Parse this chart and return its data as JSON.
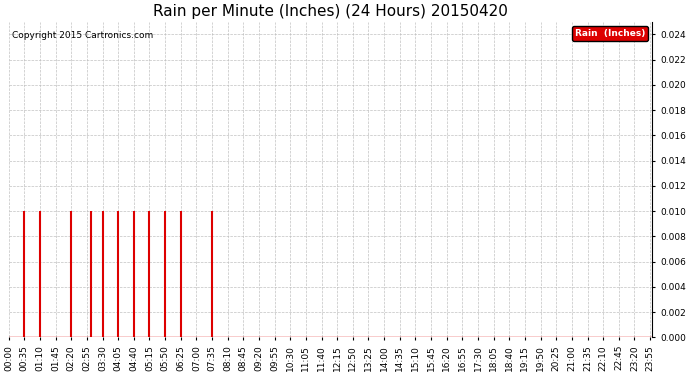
{
  "title": "Rain per Minute (Inches) (24 Hours) 20150420",
  "copyright": "Copyright 2015 Cartronics.com",
  "legend_label": "Rain  (Inches)",
  "legend_bg": "#dd0000",
  "legend_text_color": "#ffffff",
  "bar_color": "#dd0000",
  "baseline_color": "#dd0000",
  "background_color": "#ffffff",
  "ylim": [
    0.0,
    0.025
  ],
  "yticks": [
    0.0,
    0.002,
    0.004,
    0.006,
    0.008,
    0.01,
    0.012,
    0.014,
    0.016,
    0.018,
    0.02,
    0.022,
    0.024
  ],
  "grid_color": "#bbbbbb",
  "title_fontsize": 11,
  "tick_fontsize": 6.5,
  "rain_minutes": [
    35,
    70,
    140,
    185,
    210,
    245,
    280,
    315,
    350,
    385,
    455
  ],
  "rain_values": [
    0.01,
    0.01,
    0.01,
    0.01,
    0.01,
    0.01,
    0.01,
    0.01,
    0.01,
    0.01,
    0.01
  ],
  "total_minutes": 1440,
  "x_tick_interval": 35,
  "x_tick_labels": [
    "00:00",
    "00:35",
    "01:10",
    "01:45",
    "02:20",
    "02:55",
    "03:30",
    "04:05",
    "04:40",
    "05:15",
    "05:50",
    "06:25",
    "07:00",
    "07:35",
    "08:10",
    "08:45",
    "09:20",
    "09:55",
    "10:30",
    "11:05",
    "11:40",
    "12:15",
    "12:50",
    "13:25",
    "14:00",
    "14:35",
    "15:10",
    "15:45",
    "16:20",
    "16:55",
    "17:30",
    "18:05",
    "18:40",
    "19:15",
    "19:50",
    "20:25",
    "21:00",
    "21:35",
    "22:10",
    "22:45",
    "23:20",
    "23:55"
  ]
}
